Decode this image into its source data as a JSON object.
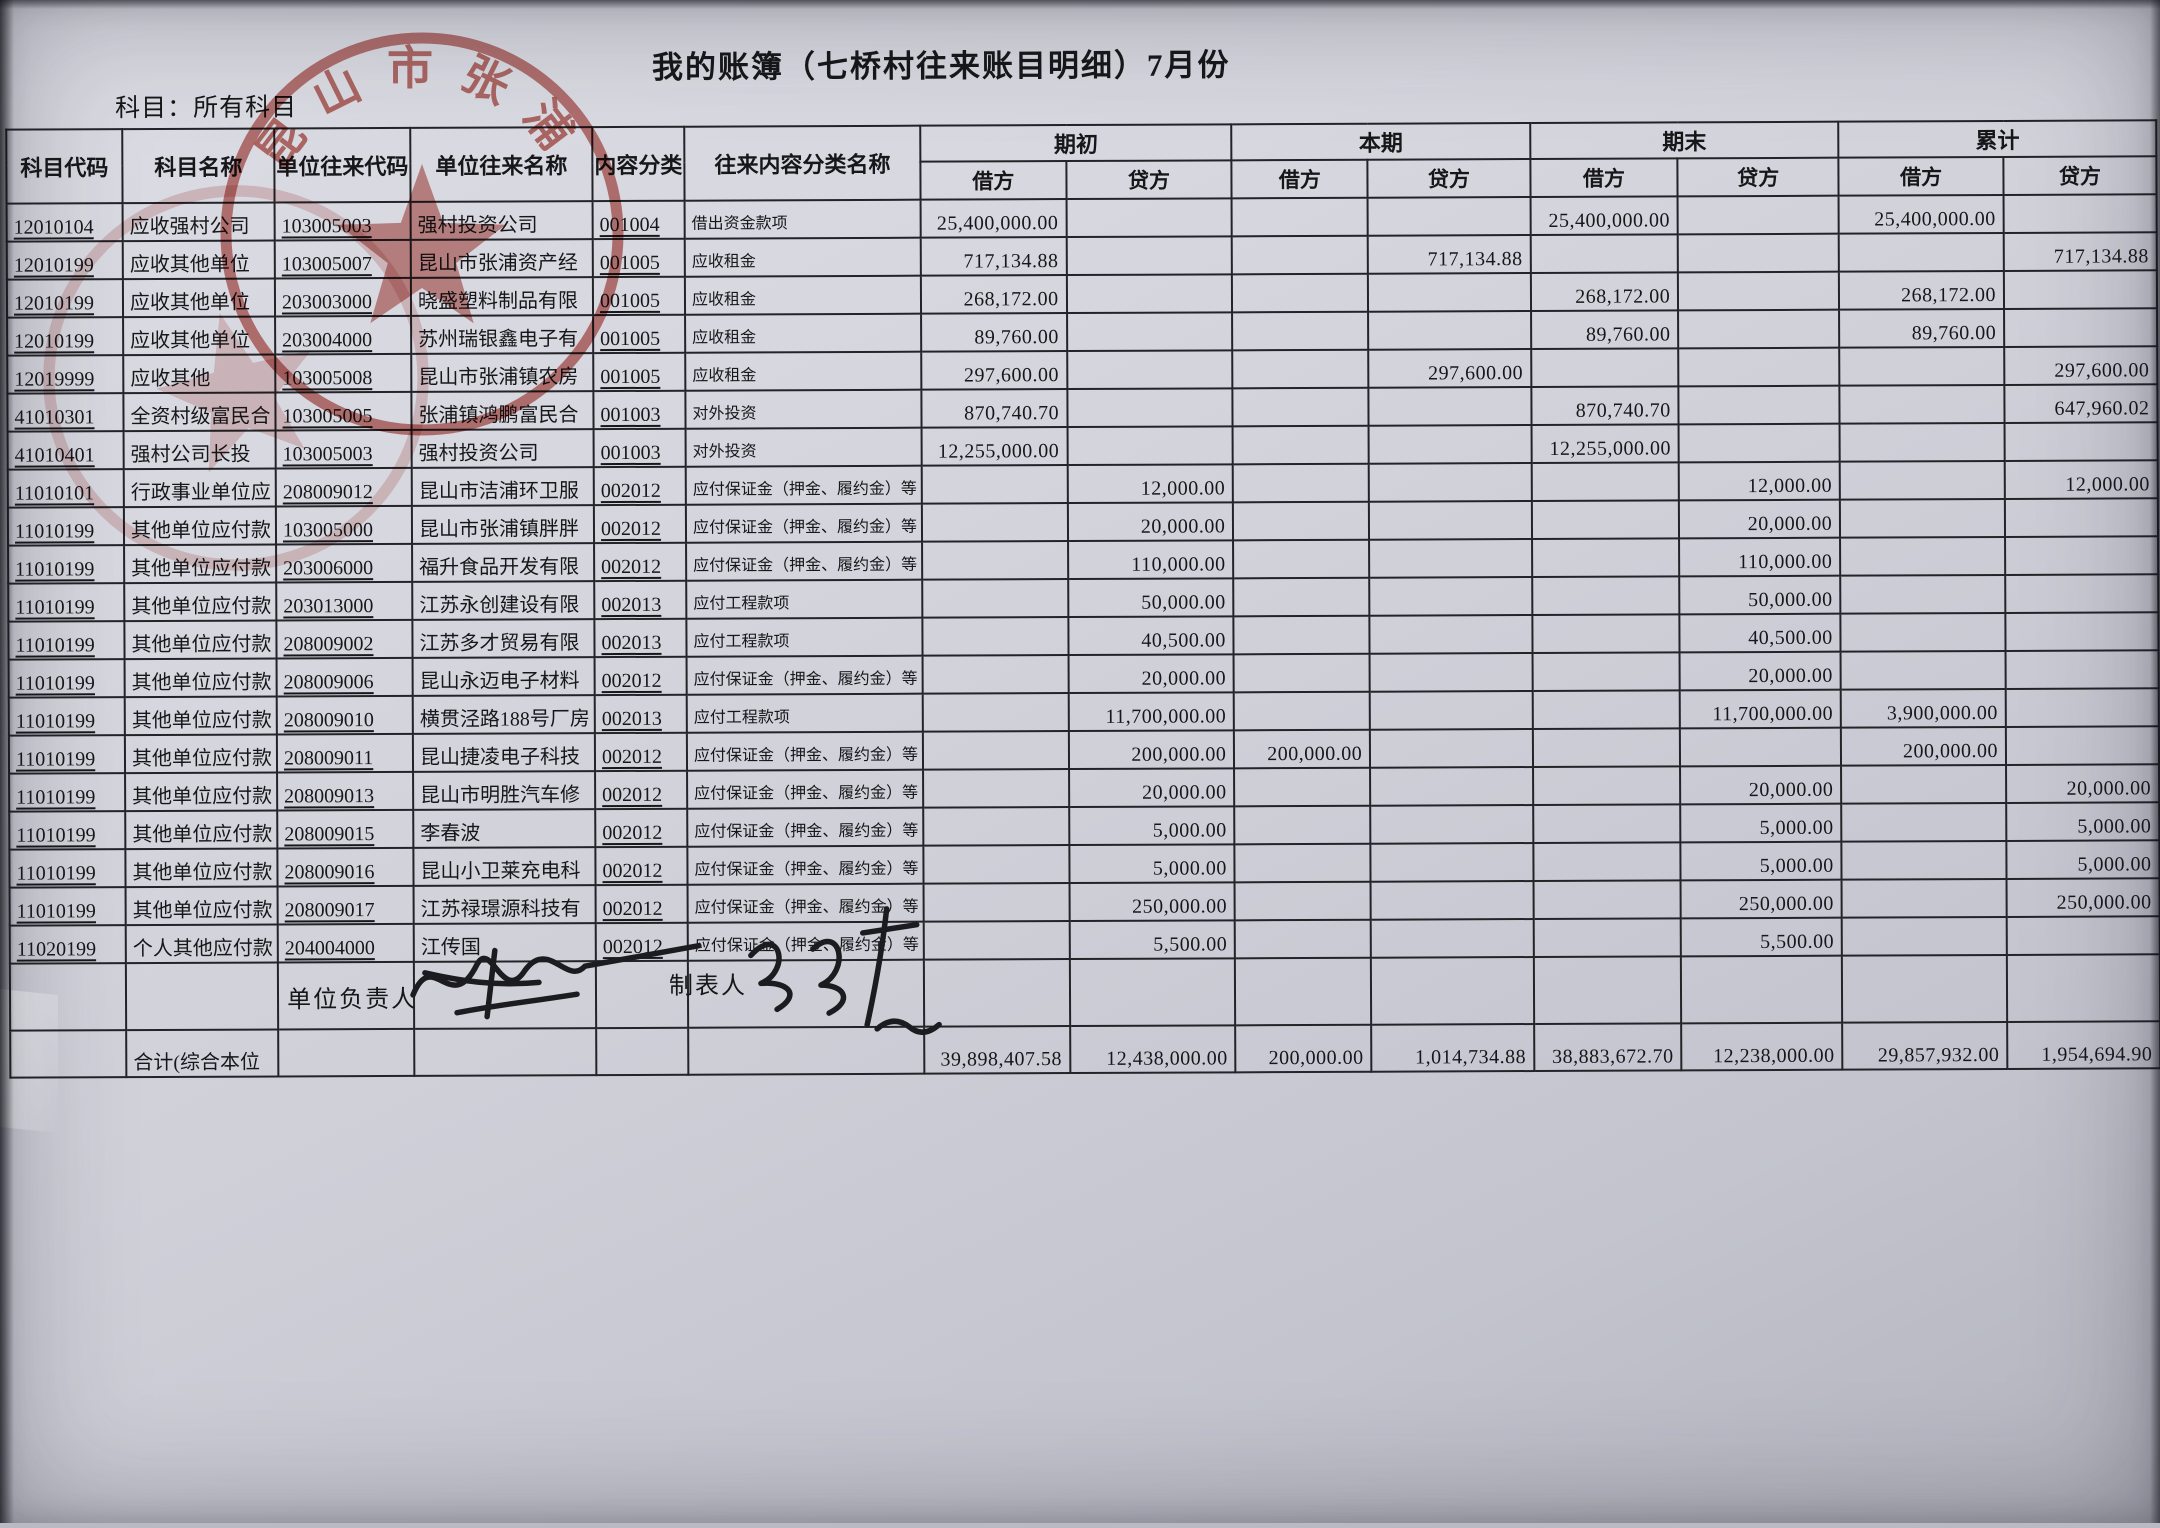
{
  "page": {
    "title": "我的账簿（七桥村往来账目明细）7月份",
    "subject_filter": "科目：所有科目"
  },
  "stamp": {
    "arc_text": "昆山市张浦",
    "color": "#a8281e"
  },
  "table": {
    "columns": [
      "科目代码",
      "科目名称",
      "单位往来代码",
      "单位往来名称",
      "内容分类",
      "往来内容分类名称"
    ],
    "groups": [
      "期初",
      "本期",
      "期末",
      "累计"
    ],
    "debit_label": "借方",
    "credit_label": "贷方",
    "rows": [
      {
        "code": "12010104",
        "name": "应收强村公司",
        "unit_code": "103005003",
        "unit_name": "强村投资公司",
        "cat_code": "001004",
        "cat_name": "借出资金款项",
        "amounts": [
          "25,400,000.00",
          "",
          "",
          "",
          "25,400,000.00",
          "",
          "25,400,000.00",
          ""
        ]
      },
      {
        "code": "12010199",
        "name": "应收其他单位",
        "unit_code": "103005007",
        "unit_name": "昆山市张浦资产经",
        "cat_code": "001005",
        "cat_name": "应收租金",
        "amounts": [
          "717,134.88",
          "",
          "",
          "717,134.88",
          "",
          "",
          "",
          "717,134.88"
        ]
      },
      {
        "code": "12010199",
        "name": "应收其他单位",
        "unit_code": "203003000",
        "unit_name": "晓盛塑料制品有限",
        "cat_code": "001005",
        "cat_name": "应收租金",
        "amounts": [
          "268,172.00",
          "",
          "",
          "",
          "268,172.00",
          "",
          "268,172.00",
          ""
        ]
      },
      {
        "code": "12010199",
        "name": "应收其他单位",
        "unit_code": "203004000",
        "unit_name": "苏州瑞银鑫电子有",
        "cat_code": "001005",
        "cat_name": "应收租金",
        "amounts": [
          "89,760.00",
          "",
          "",
          "",
          "89,760.00",
          "",
          "89,760.00",
          ""
        ]
      },
      {
        "code": "12019999",
        "name": "应收其他",
        "unit_code": "103005008",
        "unit_name": "昆山市张浦镇农房",
        "cat_code": "001005",
        "cat_name": "应收租金",
        "amounts": [
          "297,600.00",
          "",
          "",
          "297,600.00",
          "",
          "",
          "",
          "297,600.00"
        ]
      },
      {
        "code": "41010301",
        "name": "全资村级富民合",
        "unit_code": "103005005",
        "unit_name": "张浦镇鸿鹏富民合",
        "cat_code": "001003",
        "cat_name": "对外投资",
        "amounts": [
          "870,740.70",
          "",
          "",
          "",
          "870,740.70",
          "",
          "",
          "647,960.02"
        ]
      },
      {
        "code": "41010401",
        "name": "强村公司长投",
        "unit_code": "103005003",
        "unit_name": "强村投资公司",
        "cat_code": "001003",
        "cat_name": "对外投资",
        "amounts": [
          "12,255,000.00",
          "",
          "",
          "",
          "12,255,000.00",
          "",
          "",
          ""
        ]
      },
      {
        "code": "11010101",
        "name": "行政事业单位应",
        "unit_code": "208009012",
        "unit_name": "昆山市洁浦环卫服",
        "cat_code": "002012",
        "cat_name": "应付保证金（押金、履约金）等",
        "amounts": [
          "",
          "12,000.00",
          "",
          "",
          "",
          "12,000.00",
          "",
          "12,000.00"
        ]
      },
      {
        "code": "11010199",
        "name": "其他单位应付款",
        "unit_code": "103005000",
        "unit_name": "昆山市张浦镇胖胖",
        "cat_code": "002012",
        "cat_name": "应付保证金（押金、履约金）等",
        "amounts": [
          "",
          "20,000.00",
          "",
          "",
          "",
          "20,000.00",
          "",
          ""
        ]
      },
      {
        "code": "11010199",
        "name": "其他单位应付款",
        "unit_code": "203006000",
        "unit_name": "福升食品开发有限",
        "cat_code": "002012",
        "cat_name": "应付保证金（押金、履约金）等",
        "amounts": [
          "",
          "110,000.00",
          "",
          "",
          "",
          "110,000.00",
          "",
          ""
        ]
      },
      {
        "code": "11010199",
        "name": "其他单位应付款",
        "unit_code": "203013000",
        "unit_name": "江苏永创建设有限",
        "cat_code": "002013",
        "cat_name": "应付工程款项",
        "amounts": [
          "",
          "50,000.00",
          "",
          "",
          "",
          "50,000.00",
          "",
          ""
        ]
      },
      {
        "code": "11010199",
        "name": "其他单位应付款",
        "unit_code": "208009002",
        "unit_name": "江苏多才贸易有限",
        "cat_code": "002013",
        "cat_name": "应付工程款项",
        "amounts": [
          "",
          "40,500.00",
          "",
          "",
          "",
          "40,500.00",
          "",
          ""
        ]
      },
      {
        "code": "11010199",
        "name": "其他单位应付款",
        "unit_code": "208009006",
        "unit_name": "昆山永迈电子材料",
        "cat_code": "002012",
        "cat_name": "应付保证金（押金、履约金）等",
        "amounts": [
          "",
          "20,000.00",
          "",
          "",
          "",
          "20,000.00",
          "",
          ""
        ]
      },
      {
        "code": "11010199",
        "name": "其他单位应付款",
        "unit_code": "208009010",
        "unit_name": "横贯泾路188号厂房",
        "cat_code": "002013",
        "cat_name": "应付工程款项",
        "amounts": [
          "",
          "11,700,000.00",
          "",
          "",
          "",
          "11,700,000.00",
          "3,900,000.00",
          ""
        ]
      },
      {
        "code": "11010199",
        "name": "其他单位应付款",
        "unit_code": "208009011",
        "unit_name": "昆山捷凌电子科技",
        "cat_code": "002012",
        "cat_name": "应付保证金（押金、履约金）等",
        "amounts": [
          "",
          "200,000.00",
          "200,000.00",
          "",
          "",
          "",
          "200,000.00",
          ""
        ]
      },
      {
        "code": "11010199",
        "name": "其他单位应付款",
        "unit_code": "208009013",
        "unit_name": "昆山市明胜汽车修",
        "cat_code": "002012",
        "cat_name": "应付保证金（押金、履约金）等",
        "amounts": [
          "",
          "20,000.00",
          "",
          "",
          "",
          "20,000.00",
          "",
          "20,000.00"
        ]
      },
      {
        "code": "11010199",
        "name": "其他单位应付款",
        "unit_code": "208009015",
        "unit_name": "李春波",
        "cat_code": "002012",
        "cat_name": "应付保证金（押金、履约金）等",
        "amounts": [
          "",
          "5,000.00",
          "",
          "",
          "",
          "5,000.00",
          "",
          "5,000.00"
        ]
      },
      {
        "code": "11010199",
        "name": "其他单位应付款",
        "unit_code": "208009016",
        "unit_name": "昆山小卫莱充电科",
        "cat_code": "002012",
        "cat_name": "应付保证金（押金、履约金）等",
        "amounts": [
          "",
          "5,000.00",
          "",
          "",
          "",
          "5,000.00",
          "",
          "5,000.00"
        ]
      },
      {
        "code": "11010199",
        "name": "其他单位应付款",
        "unit_code": "208009017",
        "unit_name": "江苏禄璟源科技有",
        "cat_code": "002012",
        "cat_name": "应付保证金（押金、履约金）等",
        "amounts": [
          "",
          "250,000.00",
          "",
          "",
          "",
          "250,000.00",
          "",
          "250,000.00"
        ]
      },
      {
        "code": "11020199",
        "name": "个人其他应付款",
        "unit_code": "204004000",
        "unit_name": "江传国",
        "cat_code": "002012",
        "cat_name": "应付保证金（押金、履约金）等",
        "amounts": [
          "",
          "5,500.00",
          "",
          "",
          "",
          "5,500.00",
          "",
          ""
        ]
      }
    ],
    "total_row": {
      "label": "合计(综合本位",
      "amounts": [
        "39,898,407.58",
        "12,438,000.00",
        "200,000.00",
        "1,014,734.88",
        "38,883,672.70",
        "12,238,000.00",
        "29,857,932.00",
        "1,954,694.90"
      ]
    }
  },
  "footer": {
    "responsible_label": "单位负责人",
    "tabulator_label": "制表人"
  }
}
